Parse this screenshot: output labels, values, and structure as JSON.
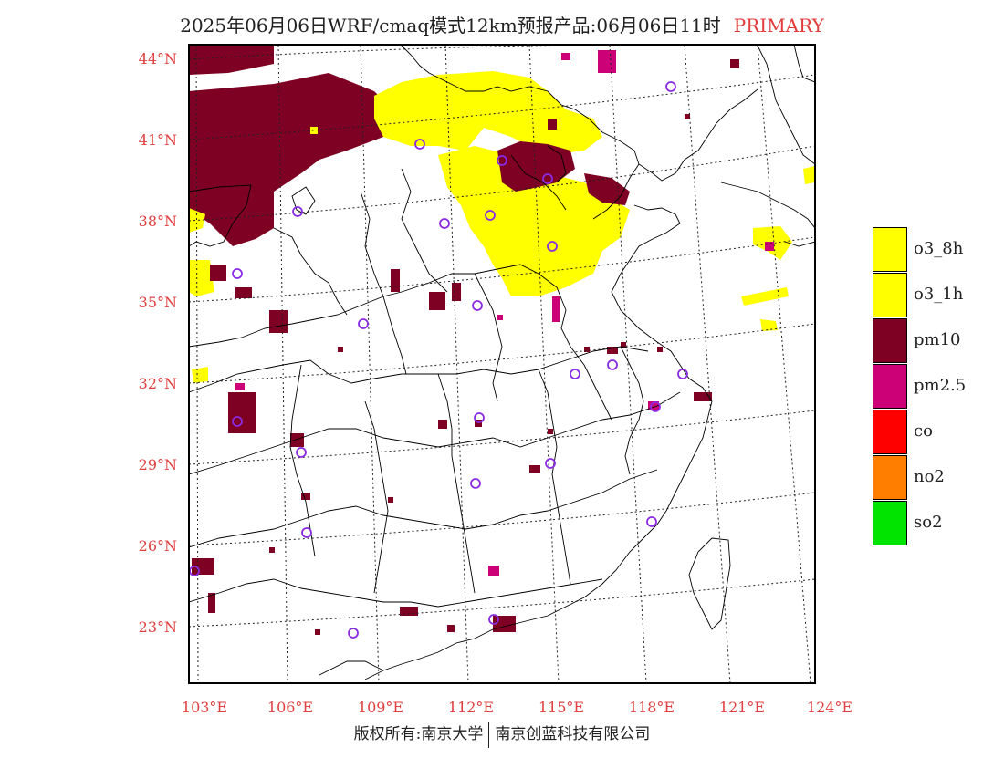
{
  "title": {
    "main": "2025年06月06日WRF/cmaq模式12km预报产品:06月06日11时",
    "tag": "PRIMARY",
    "tag_color": "#e23c3c"
  },
  "map": {
    "lat_labels": [
      "44°N",
      "41°N",
      "38°N",
      "35°N",
      "32°N",
      "29°N",
      "26°N",
      "23°N"
    ],
    "lon_labels": [
      "103°E",
      "106°E",
      "109°E",
      "112°E",
      "115°E",
      "118°E",
      "121°E",
      "124°E"
    ],
    "label_color": "#e04040"
  },
  "legend": [
    {
      "label": "o3_8h",
      "color": "#ffff00"
    },
    {
      "label": "o3_1h",
      "color": "#ffff00"
    },
    {
      "label": "pm10",
      "color": "#7e0023"
    },
    {
      "label": "pm2.5",
      "color": "#cc0077"
    },
    {
      "label": "co",
      "color": "#ff0000"
    },
    {
      "label": "no2",
      "color": "#ff7e00"
    },
    {
      "label": "so2",
      "color": "#00e400"
    }
  ],
  "footer": {
    "left": "版权所有:南京大学",
    "right": "南京创蓝科技有限公司"
  }
}
